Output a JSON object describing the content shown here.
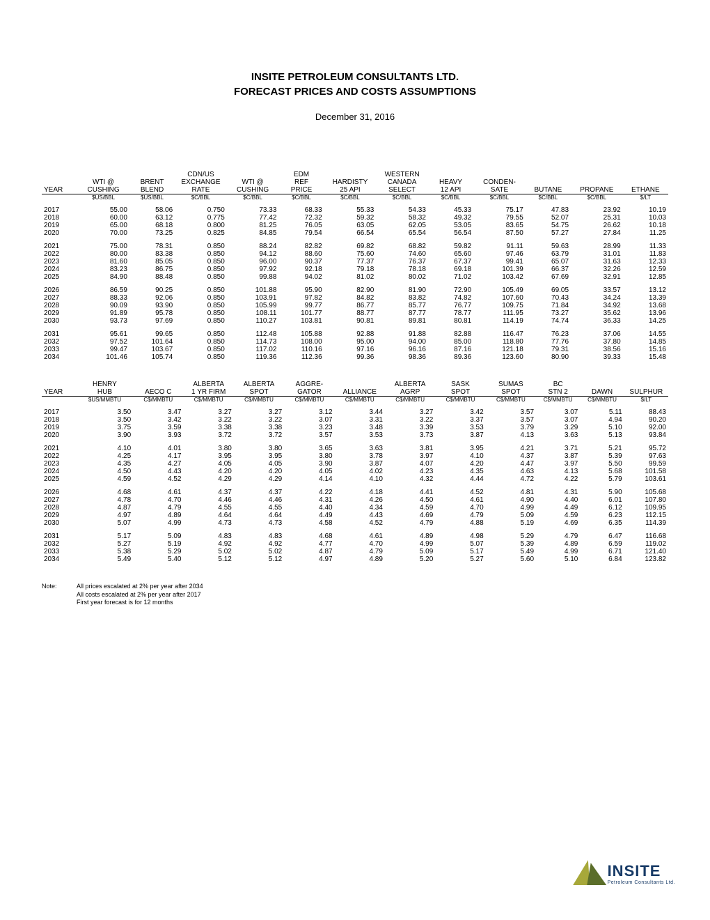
{
  "title_line1": "INSITE PETROLEUM CONSULTANTS LTD.",
  "title_line2": "FORECAST PRICES AND COSTS ASSUMPTIONS",
  "date": "December 31, 2016",
  "table1": {
    "col_widths_pct": [
      5.5,
      8,
      7,
      8,
      8,
      7,
      8,
      8,
      7,
      8,
      7,
      8,
      7
    ],
    "header_lines": [
      [
        "",
        "",
        "",
        "CDN/US",
        "",
        "EDM",
        "",
        "WESTERN",
        "",
        "",
        "",
        "",
        ""
      ],
      [
        "",
        "WTI @",
        "BRENT",
        "EXCHANGE",
        "WTI @",
        "REF",
        "HARDISTY",
        "CANADA",
        "HEAVY",
        "CONDEN-",
        "",
        "",
        ""
      ],
      [
        "YEAR",
        "CUSHING",
        "BLEND",
        "RATE",
        "CUSHING",
        "PRICE",
        "25 API",
        "SELECT",
        "12 API",
        "SATE",
        "BUTANE",
        "PROPANE",
        "ETHANE"
      ]
    ],
    "units": [
      "",
      "$US/BBL",
      "$US/BBL",
      "$C/BBL",
      "$C/BBL",
      "$C/BBL",
      "$C/BBL",
      "$C/BBL",
      "$C/BBL",
      "$C/BBL",
      "$C/BBL",
      "$C/BBL",
      "$/LT"
    ],
    "blocks": [
      [
        [
          "2017",
          "55.00",
          "58.06",
          "0.750",
          "73.33",
          "68.33",
          "55.33",
          "54.33",
          "45.33",
          "75.17",
          "47.83",
          "23.92",
          "10.19"
        ],
        [
          "2018",
          "60.00",
          "63.12",
          "0.775",
          "77.42",
          "72.32",
          "59.32",
          "58.32",
          "49.32",
          "79.55",
          "52.07",
          "25.31",
          "10.03"
        ],
        [
          "2019",
          "65.00",
          "68.18",
          "0.800",
          "81.25",
          "76.05",
          "63.05",
          "62.05",
          "53.05",
          "83.65",
          "54.75",
          "26.62",
          "10.18"
        ],
        [
          "2020",
          "70.00",
          "73.25",
          "0.825",
          "84.85",
          "79.54",
          "66.54",
          "65.54",
          "56.54",
          "87.50",
          "57.27",
          "27.84",
          "11.25"
        ]
      ],
      [
        [
          "2021",
          "75.00",
          "78.31",
          "0.850",
          "88.24",
          "82.82",
          "69.82",
          "68.82",
          "59.82",
          "91.11",
          "59.63",
          "28.99",
          "11.33"
        ],
        [
          "2022",
          "80.00",
          "83.38",
          "0.850",
          "94.12",
          "88.60",
          "75.60",
          "74.60",
          "65.60",
          "97.46",
          "63.79",
          "31.01",
          "11.83"
        ],
        [
          "2023",
          "81.60",
          "85.05",
          "0.850",
          "96.00",
          "90.37",
          "77.37",
          "76.37",
          "67.37",
          "99.41",
          "65.07",
          "31.63",
          "12.33"
        ],
        [
          "2024",
          "83.23",
          "86.75",
          "0.850",
          "97.92",
          "92.18",
          "79.18",
          "78.18",
          "69.18",
          "101.39",
          "66.37",
          "32.26",
          "12.59"
        ],
        [
          "2025",
          "84.90",
          "88.48",
          "0.850",
          "99.88",
          "94.02",
          "81.02",
          "80.02",
          "71.02",
          "103.42",
          "67.69",
          "32.91",
          "12.85"
        ]
      ],
      [
        [
          "2026",
          "86.59",
          "90.25",
          "0.850",
          "101.88",
          "95.90",
          "82.90",
          "81.90",
          "72.90",
          "105.49",
          "69.05",
          "33.57",
          "13.12"
        ],
        [
          "2027",
          "88.33",
          "92.06",
          "0.850",
          "103.91",
          "97.82",
          "84.82",
          "83.82",
          "74.82",
          "107.60",
          "70.43",
          "34.24",
          "13.39"
        ],
        [
          "2028",
          "90.09",
          "93.90",
          "0.850",
          "105.99",
          "99.77",
          "86.77",
          "85.77",
          "76.77",
          "109.75",
          "71.84",
          "34.92",
          "13.68"
        ],
        [
          "2029",
          "91.89",
          "95.78",
          "0.850",
          "108.11",
          "101.77",
          "88.77",
          "87.77",
          "78.77",
          "111.95",
          "73.27",
          "35.62",
          "13.96"
        ],
        [
          "2030",
          "93.73",
          "97.69",
          "0.850",
          "110.27",
          "103.81",
          "90.81",
          "89.81",
          "80.81",
          "114.19",
          "74.74",
          "36.33",
          "14.25"
        ]
      ],
      [
        [
          "2031",
          "95.61",
          "99.65",
          "0.850",
          "112.48",
          "105.88",
          "92.88",
          "91.88",
          "82.88",
          "116.47",
          "76.23",
          "37.06",
          "14.55"
        ],
        [
          "2032",
          "97.52",
          "101.64",
          "0.850",
          "114.73",
          "108.00",
          "95.00",
          "94.00",
          "85.00",
          "118.80",
          "77.76",
          "37.80",
          "14.85"
        ],
        [
          "2033",
          "99.47",
          "103.67",
          "0.850",
          "117.02",
          "110.16",
          "97.16",
          "96.16",
          "87.16",
          "121.18",
          "79.31",
          "38.56",
          "15.16"
        ],
        [
          "2034",
          "101.46",
          "105.74",
          "0.850",
          "119.36",
          "112.36",
          "99.36",
          "98.36",
          "89.36",
          "123.60",
          "80.90",
          "39.33",
          "15.48"
        ]
      ]
    ]
  },
  "table2": {
    "col_widths_pct": [
      5.5,
      9,
      8,
      8,
      8,
      8,
      8,
      8,
      8,
      8,
      7,
      7,
      7
    ],
    "header_lines": [
      [
        "",
        "HENRY",
        "",
        "ALBERTA",
        "ALBERTA",
        "AGGRE-",
        "",
        "ALBERTA",
        "SASK",
        "SUMAS",
        "BC",
        "",
        ""
      ],
      [
        "YEAR",
        "HUB",
        "AECO C",
        "1 YR FIRM",
        "SPOT",
        "GATOR",
        "ALLIANCE",
        "AGRP",
        "SPOT",
        "SPOT",
        "STN 2",
        "DAWN",
        "SULPHUR"
      ]
    ],
    "units": [
      "",
      "$US/MMBTU",
      "C$/MMBTU",
      "C$/MMBTU",
      "C$/MMBTU",
      "C$/MMBTU",
      "C$/MMBTU",
      "C$/MMBTU",
      "C$/MMBTU",
      "C$/MMBTU",
      "C$/MMBTU",
      "C$/MMBTU",
      "$/LT"
    ],
    "blocks": [
      [
        [
          "2017",
          "3.50",
          "3.47",
          "3.27",
          "3.27",
          "3.12",
          "3.44",
          "3.27",
          "3.42",
          "3.57",
          "3.07",
          "5.11",
          "88.43"
        ],
        [
          "2018",
          "3.50",
          "3.42",
          "3.22",
          "3.22",
          "3.07",
          "3.31",
          "3.22",
          "3.37",
          "3.57",
          "3.07",
          "4.94",
          "90.20"
        ],
        [
          "2019",
          "3.75",
          "3.59",
          "3.38",
          "3.38",
          "3.23",
          "3.48",
          "3.39",
          "3.53",
          "3.79",
          "3.29",
          "5.10",
          "92.00"
        ],
        [
          "2020",
          "3.90",
          "3.93",
          "3.72",
          "3.72",
          "3.57",
          "3.53",
          "3.73",
          "3.87",
          "4.13",
          "3.63",
          "5.13",
          "93.84"
        ]
      ],
      [
        [
          "2021",
          "4.10",
          "4.01",
          "3.80",
          "3.80",
          "3.65",
          "3.63",
          "3.81",
          "3.95",
          "4.21",
          "3.71",
          "5.21",
          "95.72"
        ],
        [
          "2022",
          "4.25",
          "4.17",
          "3.95",
          "3.95",
          "3.80",
          "3.78",
          "3.97",
          "4.10",
          "4.37",
          "3.87",
          "5.39",
          "97.63"
        ],
        [
          "2023",
          "4.35",
          "4.27",
          "4.05",
          "4.05",
          "3.90",
          "3.87",
          "4.07",
          "4.20",
          "4.47",
          "3.97",
          "5.50",
          "99.59"
        ],
        [
          "2024",
          "4.50",
          "4.43",
          "4.20",
          "4.20",
          "4.05",
          "4.02",
          "4.23",
          "4.35",
          "4.63",
          "4.13",
          "5.68",
          "101.58"
        ],
        [
          "2025",
          "4.59",
          "4.52",
          "4.29",
          "4.29",
          "4.14",
          "4.10",
          "4.32",
          "4.44",
          "4.72",
          "4.22",
          "5.79",
          "103.61"
        ]
      ],
      [
        [
          "2026",
          "4.68",
          "4.61",
          "4.37",
          "4.37",
          "4.22",
          "4.18",
          "4.41",
          "4.52",
          "4.81",
          "4.31",
          "5.90",
          "105.68"
        ],
        [
          "2027",
          "4.78",
          "4.70",
          "4.46",
          "4.46",
          "4.31",
          "4.26",
          "4.50",
          "4.61",
          "4.90",
          "4.40",
          "6.01",
          "107.80"
        ],
        [
          "2028",
          "4.87",
          "4.79",
          "4.55",
          "4.55",
          "4.40",
          "4.34",
          "4.59",
          "4.70",
          "4.99",
          "4.49",
          "6.12",
          "109.95"
        ],
        [
          "2029",
          "4.97",
          "4.89",
          "4.64",
          "4.64",
          "4.49",
          "4.43",
          "4.69",
          "4.79",
          "5.09",
          "4.59",
          "6.23",
          "112.15"
        ],
        [
          "2030",
          "5.07",
          "4.99",
          "4.73",
          "4.73",
          "4.58",
          "4.52",
          "4.79",
          "4.88",
          "5.19",
          "4.69",
          "6.35",
          "114.39"
        ]
      ],
      [
        [
          "2031",
          "5.17",
          "5.09",
          "4.83",
          "4.83",
          "4.68",
          "4.61",
          "4.89",
          "4.98",
          "5.29",
          "4.79",
          "6.47",
          "116.68"
        ],
        [
          "2032",
          "5.27",
          "5.19",
          "4.92",
          "4.92",
          "4.77",
          "4.70",
          "4.99",
          "5.07",
          "5.39",
          "4.89",
          "6.59",
          "119.02"
        ],
        [
          "2033",
          "5.38",
          "5.29",
          "5.02",
          "5.02",
          "4.87",
          "4.79",
          "5.09",
          "5.17",
          "5.49",
          "4.99",
          "6.71",
          "121.40"
        ],
        [
          "2034",
          "5.49",
          "5.40",
          "5.12",
          "5.12",
          "4.97",
          "4.89",
          "5.20",
          "5.27",
          "5.60",
          "5.10",
          "6.84",
          "123.82"
        ]
      ]
    ]
  },
  "note": {
    "label": "Note:",
    "lines": [
      "All prices escalated at 2% per year after 2034",
      "All costs escalated at 2% per year after 2017",
      "First year forecast is for 12 months"
    ]
  },
  "logo": {
    "main": "INSITE",
    "sub": "Petroleum Consultants Ltd."
  }
}
